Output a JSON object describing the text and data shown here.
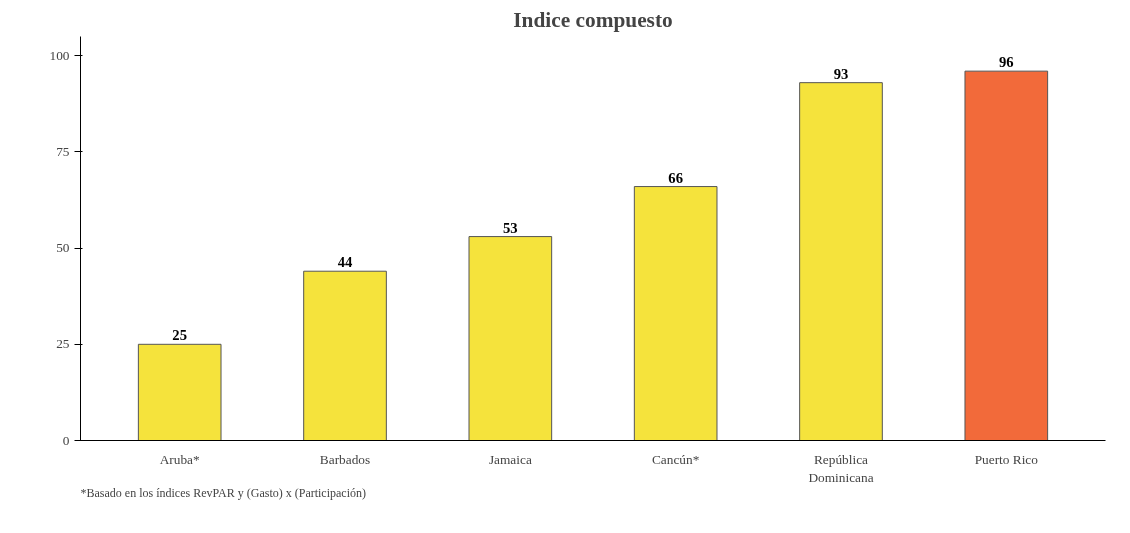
{
  "chart_data": {
    "type": "bar",
    "title": "Indice compuesto",
    "categories": [
      "Aruba*",
      "Barbados",
      "Jamaica",
      "Cancún*",
      "República Dominicana",
      "Puerto Rico"
    ],
    "values": [
      25,
      44,
      53,
      66,
      93,
      96
    ],
    "colors": [
      "#f5e33c",
      "#f5e33c",
      "#f5e33c",
      "#f5e33c",
      "#f5e33c",
      "#f26a3a"
    ],
    "ylim": [
      0,
      105
    ],
    "yticks": [
      0,
      25,
      50,
      75,
      100
    ],
    "data_labels": true,
    "grid": false,
    "annotations": [
      "*Basado en los índices RevPAR y (Gasto) x (Participación)"
    ]
  }
}
